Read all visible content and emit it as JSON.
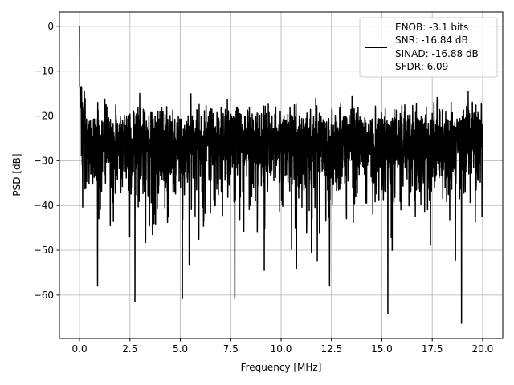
{
  "chart_data": {
    "type": "line",
    "title": "",
    "xlabel": "Frequency [MHz]",
    "ylabel": "PSD [dB]",
    "xlim": [
      -1.0,
      21.0
    ],
    "ylim": [
      -69.7,
      3.2
    ],
    "xticks": [
      0.0,
      2.5,
      5.0,
      7.5,
      10.0,
      12.5,
      15.0,
      17.5,
      20.0
    ],
    "xtick_labels": [
      "0.0",
      "2.5",
      "5.0",
      "7.5",
      "10.0",
      "12.5",
      "15.0",
      "17.5",
      "20.0"
    ],
    "yticks": [
      0,
      -10,
      -20,
      -30,
      -40,
      -50,
      -60
    ],
    "ytick_labels": [
      "0",
      "−10",
      "−20",
      "−30",
      "−40",
      "−50",
      "−60"
    ],
    "grid": true,
    "legend_placement": "upper-right",
    "series": [
      {
        "name": "ENOB: -3.1 bits\nSNR: -16.84 dB\nSINAD: -16.88 dB\nSFDR: 6.09",
        "color": "#000000",
        "x_range": [
          0.0,
          20.0
        ],
        "peak": {
          "x": 0.0,
          "y": 0.0
        },
        "noise_floor_upper_approx": -18,
        "noise_floor_median_approx": -27,
        "noise_floor_lower_approx": -50,
        "notable_minima": [
          {
            "x": 2.75,
            "y": -61.5
          },
          {
            "x": 5.1,
            "y": -60.8
          },
          {
            "x": 7.7,
            "y": -60.8
          },
          {
            "x": 15.3,
            "y": -64.2
          },
          {
            "x": 18.95,
            "y": -66.3
          }
        ]
      }
    ],
    "legend_lines": [
      "ENOB: -3.1 bits",
      "SNR: -16.84 dB",
      "SINAD: -16.88 dB",
      "SFDR: 6.09"
    ]
  }
}
